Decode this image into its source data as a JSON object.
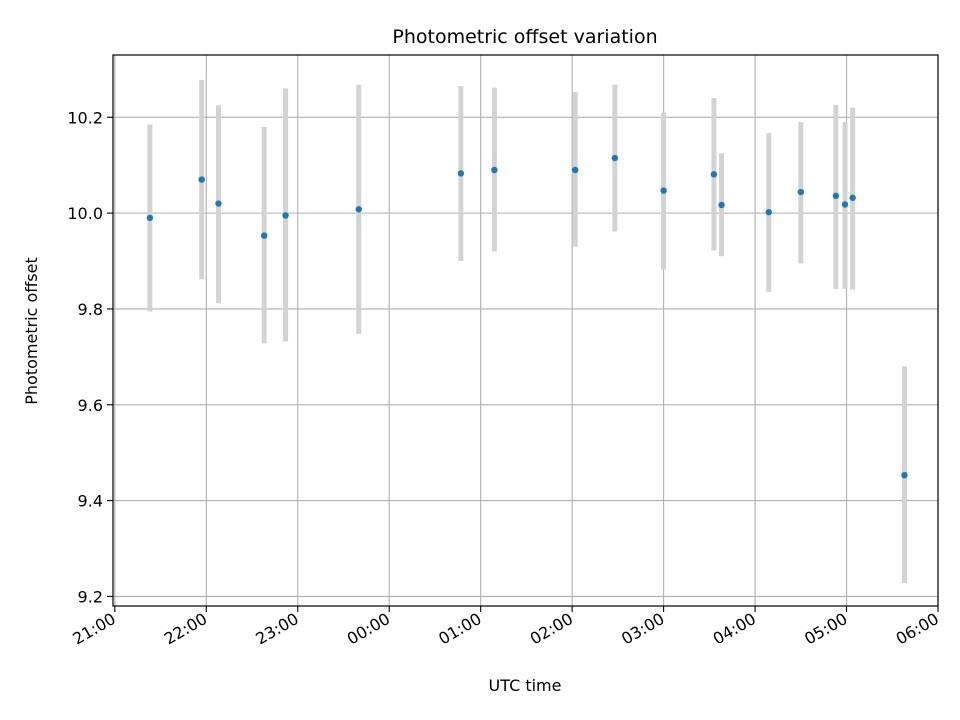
{
  "chart_data": {
    "type": "scatter",
    "title": "Photometric offset variation",
    "xlabel": "UTC time",
    "ylabel": "Photometric offset",
    "x_tick_labels": [
      "21:00",
      "22:00",
      "23:00",
      "00:00",
      "01:00",
      "02:00",
      "03:00",
      "04:00",
      "05:00",
      "06:00"
    ],
    "y_tick_labels": [
      "9.2",
      "9.4",
      "9.6",
      "9.8",
      "10.0",
      "10.2"
    ],
    "y_ticks": [
      9.2,
      9.4,
      9.6,
      9.8,
      10.0,
      10.2
    ],
    "xlim_hours_from_2100": [
      -0.02,
      9.0
    ],
    "ylim": [
      9.18,
      10.33
    ],
    "grid": true,
    "colors": {
      "point": "#1f77b4",
      "errorbar": "#d3d3d3",
      "grid": "#b0b0b0"
    },
    "points": [
      {
        "time": "21:23",
        "y": 9.99,
        "err_low": 9.795,
        "err_high": 10.185
      },
      {
        "time": "21:57",
        "y": 10.07,
        "err_low": 9.862,
        "err_high": 10.278
      },
      {
        "time": "22:08",
        "y": 10.02,
        "err_low": 9.812,
        "err_high": 10.225
      },
      {
        "time": "22:38",
        "y": 9.953,
        "err_low": 9.728,
        "err_high": 10.18
      },
      {
        "time": "22:52",
        "y": 9.995,
        "err_low": 9.732,
        "err_high": 10.26
      },
      {
        "time": "23:40",
        "y": 10.008,
        "err_low": 9.748,
        "err_high": 10.268
      },
      {
        "time": "00:47",
        "y": 10.083,
        "err_low": 9.9,
        "err_high": 10.265
      },
      {
        "time": "01:09",
        "y": 10.09,
        "err_low": 9.92,
        "err_high": 10.262
      },
      {
        "time": "02:02",
        "y": 10.09,
        "err_low": 9.93,
        "err_high": 10.253
      },
      {
        "time": "02:28",
        "y": 10.115,
        "err_low": 9.962,
        "err_high": 10.268
      },
      {
        "time": "03:00",
        "y": 10.047,
        "err_low": 9.882,
        "err_high": 10.21
      },
      {
        "time": "03:33",
        "y": 10.081,
        "err_low": 9.922,
        "err_high": 10.24
      },
      {
        "time": "03:38",
        "y": 10.017,
        "err_low": 9.91,
        "err_high": 10.125
      },
      {
        "time": "04:09",
        "y": 10.002,
        "err_low": 9.835,
        "err_high": 10.167
      },
      {
        "time": "04:30",
        "y": 10.044,
        "err_low": 9.895,
        "err_high": 10.19
      },
      {
        "time": "04:53",
        "y": 10.036,
        "err_low": 9.842,
        "err_high": 10.226
      },
      {
        "time": "04:59",
        "y": 10.018,
        "err_low": 9.842,
        "err_high": 10.19
      },
      {
        "time": "05:04",
        "y": 10.032,
        "err_low": 9.84,
        "err_high": 10.22
      },
      {
        "time": "05:38",
        "y": 9.453,
        "err_low": 9.228,
        "err_high": 9.68
      }
    ]
  }
}
